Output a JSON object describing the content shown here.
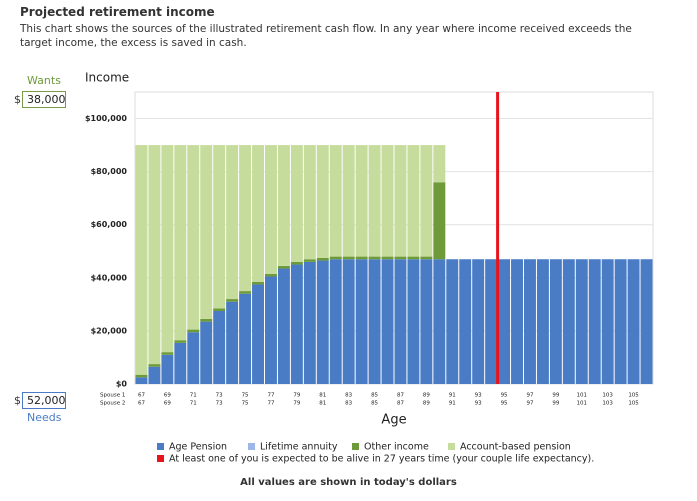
{
  "header": {
    "title": "Projected retirement income",
    "description": "This chart shows the sources of the illustrated retirement cash flow. In any year where income received exceeds the target income, the excess is saved in cash."
  },
  "inputs": {
    "wants_label": "Wants",
    "wants_currency": "$",
    "wants_value": "38,000",
    "needs_label": "Needs",
    "needs_currency": "$",
    "needs_value": "52,000"
  },
  "footer": "All values are shown in today's dollars",
  "chart_data": {
    "type": "stacked_bar",
    "y_label": "Income",
    "x_label": "Age",
    "x": [
      67,
      68,
      69,
      70,
      71,
      72,
      73,
      74,
      75,
      76,
      77,
      78,
      79,
      80,
      81,
      82,
      83,
      84,
      85,
      86,
      87,
      88,
      89,
      90,
      91,
      92,
      93,
      94,
      95,
      96,
      97,
      98,
      99,
      100,
      101,
      102,
      103,
      104,
      105,
      106
    ],
    "xlim": [
      66.5,
      106.5
    ],
    "spouse_rows": [
      {
        "name": "Spouse 1",
        "ticks": [
          67,
          69,
          71,
          73,
          75,
          77,
          79,
          81,
          83,
          85,
          87,
          89,
          91,
          93,
          95,
          97,
          99,
          101,
          103,
          105
        ]
      },
      {
        "name": "Spouse 2",
        "ticks": [
          67,
          69,
          71,
          73,
          75,
          77,
          79,
          81,
          83,
          85,
          87,
          89,
          91,
          93,
          95,
          97,
          99,
          101,
          103,
          105
        ]
      }
    ],
    "ylim": [
      0,
      110000
    ],
    "yticks": [
      {
        "value": 0,
        "label": "$0"
      },
      {
        "value": 20000,
        "label": "$20,000"
      },
      {
        "value": 40000,
        "label": "$40,000"
      },
      {
        "value": 60000,
        "label": "$60,000"
      },
      {
        "value": 80000,
        "label": "$80,000"
      },
      {
        "value": 100000,
        "label": "$100,000"
      }
    ],
    "grid": true,
    "series": [
      {
        "name": "Age Pension",
        "color": "#4a7cc6",
        "values": [
          2500,
          6500,
          11000,
          15500,
          19500,
          23500,
          27500,
          31000,
          34000,
          37500,
          40500,
          43500,
          45000,
          46000,
          46500,
          47000,
          47000,
          47000,
          47000,
          47000,
          47000,
          47000,
          47000,
          47000,
          47000,
          47000,
          47000,
          47000,
          47000,
          47000,
          47000,
          47000,
          47000,
          47000,
          47000,
          47000,
          47000,
          47000,
          47000,
          47000
        ]
      },
      {
        "name": "Lifetime annuity",
        "color": "#9db8e8",
        "values": [
          0,
          0,
          0,
          0,
          0,
          0,
          0,
          0,
          0,
          0,
          0,
          0,
          0,
          0,
          0,
          0,
          0,
          0,
          0,
          0,
          0,
          0,
          0,
          0,
          0,
          0,
          0,
          0,
          0,
          0,
          0,
          0,
          0,
          0,
          0,
          0,
          0,
          0,
          0,
          0
        ]
      },
      {
        "name": "Other income",
        "color": "#6e9a3a",
        "values": [
          1000,
          1000,
          1000,
          1000,
          1000,
          1000,
          1000,
          1000,
          1000,
          1000,
          1000,
          1000,
          1000,
          1000,
          1000,
          1000,
          1000,
          1000,
          1000,
          1000,
          1000,
          1000,
          1000,
          29000,
          0,
          0,
          0,
          0,
          0,
          0,
          0,
          0,
          0,
          0,
          0,
          0,
          0,
          0,
          0,
          0
        ]
      },
      {
        "name": "Account-based pension",
        "color": "#c6dc9c",
        "values": [
          86500,
          82500,
          78000,
          73500,
          69500,
          65500,
          61500,
          58000,
          55000,
          51500,
          48500,
          45500,
          44000,
          43000,
          42500,
          42000,
          42000,
          42000,
          42000,
          42000,
          42000,
          42000,
          42000,
          14000,
          0,
          0,
          0,
          0,
          0,
          0,
          0,
          0,
          0,
          0,
          0,
          0,
          0,
          0,
          0,
          0
        ]
      }
    ],
    "marker": {
      "x": 94.5,
      "color": "#e8141b",
      "label": "At least one of you is expected to be alive in 27 years time (your couple life expectancy)."
    }
  }
}
